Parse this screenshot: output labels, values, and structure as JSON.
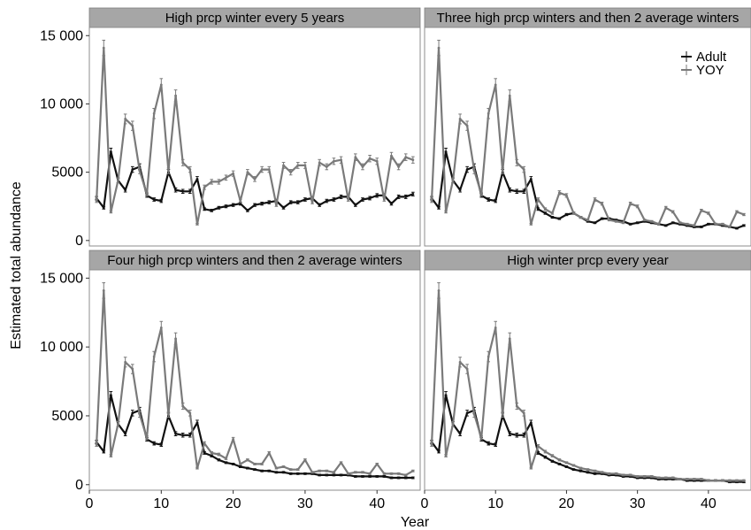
{
  "chart_data": {
    "type": "line",
    "layout": "facet-2x2",
    "xlabel": "Year",
    "ylabel": "Estimated total abundance",
    "xlim": [
      0,
      46
    ],
    "ylim": [
      -400,
      15600
    ],
    "xticks": [
      0,
      10,
      20,
      30,
      40
    ],
    "yticks": [
      0,
      5000,
      10000,
      15000
    ],
    "ytick_labels": [
      "0",
      "5000",
      "10 000",
      "15 000"
    ],
    "legend": {
      "placement": "top-right",
      "entries": [
        "Adult",
        "YOY"
      ],
      "panel": 1
    },
    "series_colors": {
      "Adult": "#111111",
      "YOY": "#7a7a7a"
    },
    "grid": false,
    "error_bars": true,
    "x": [
      1,
      2,
      3,
      4,
      5,
      6,
      7,
      8,
      9,
      10,
      11,
      12,
      13,
      14,
      15,
      16,
      17,
      18,
      19,
      20,
      21,
      22,
      23,
      24,
      25,
      26,
      27,
      28,
      29,
      30,
      31,
      32,
      33,
      34,
      35,
      36,
      37,
      38,
      39,
      40,
      41,
      42,
      43,
      44,
      45
    ],
    "panels": [
      {
        "title": "High prcp winter every 5 years",
        "series": [
          {
            "name": "Adult",
            "values": [
              3100,
              2400,
              6500,
              4400,
              3700,
              5200,
              5400,
              3300,
              3000,
              2900,
              5000,
              3700,
              3600,
              3600,
              4500,
              2300,
              2200,
              2400,
              2500,
              2600,
              2700,
              2200,
              2600,
              2700,
              2800,
              2900,
              2400,
              2800,
              2800,
              3000,
              3100,
              2600,
              2900,
              3000,
              3200,
              3200,
              2600,
              3000,
              3100,
              3300,
              3300,
              2700,
              3200,
              3200,
              3400
            ]
          },
          {
            "name": "YOY",
            "values": [
              2900,
              14100,
              2100,
              4400,
              8900,
              8400,
              5100,
              3400,
              9300,
              11400,
              5100,
              10600,
              5700,
              5200,
              1200,
              3900,
              4300,
              4300,
              4600,
              4900,
              2900,
              5000,
              4500,
              5200,
              5200,
              2600,
              5500,
              5000,
              5500,
              5500,
              2800,
              5700,
              5400,
              5800,
              5900,
              3000,
              6100,
              5400,
              6000,
              5800,
              3000,
              6200,
              5400,
              6100,
              5900
            ]
          }
        ]
      },
      {
        "title": "Three high prcp winters and then 2 average winters",
        "series": [
          {
            "name": "Adult",
            "values": [
              3100,
              2400,
              6500,
              4400,
              3700,
              5200,
              5400,
              3300,
              3000,
              2900,
              5000,
              3700,
              3600,
              3600,
              4500,
              2300,
              2000,
              1700,
              1600,
              1900,
              2000,
              1700,
              1400,
              1300,
              1600,
              1600,
              1500,
              1400,
              1200,
              1300,
              1400,
              1300,
              1200,
              1100,
              1300,
              1200,
              1100,
              1000,
              1000,
              1200,
              1200,
              1100,
              1000,
              900,
              1100
            ]
          },
          {
            "name": "YOY",
            "values": [
              2900,
              14100,
              2100,
              4400,
              8900,
              8400,
              5100,
              3400,
              9300,
              11400,
              5100,
              10600,
              5700,
              5200,
              1200,
              3000,
              2300,
              2000,
              3500,
              3300,
              2000,
              1700,
              1500,
              3000,
              2700,
              1500,
              1400,
              1300,
              2700,
              2500,
              1500,
              1400,
              1200,
              2400,
              2100,
              1300,
              1200,
              1100,
              2200,
              2000,
              1200,
              1200,
              1000,
              2100,
              1900
            ]
          }
        ]
      },
      {
        "title": "Four high prcp winters and then 2 average winters",
        "series": [
          {
            "name": "Adult",
            "values": [
              3100,
              2400,
              6500,
              4400,
              3700,
              5200,
              5400,
              3300,
              3000,
              2900,
              5000,
              3700,
              3600,
              3600,
              4500,
              2300,
              2100,
              1800,
              1600,
              1500,
              1300,
              1200,
              1100,
              1000,
              1000,
              900,
              900,
              800,
              800,
              800,
              800,
              700,
              700,
              700,
              700,
              700,
              600,
              600,
              600,
              600,
              600,
              500,
              500,
              500,
              500
            ]
          },
          {
            "name": "YOY",
            "values": [
              2900,
              14100,
              2100,
              4400,
              8900,
              8400,
              5100,
              3400,
              9300,
              11400,
              5100,
              10600,
              5700,
              5200,
              1200,
              3000,
              2300,
              2200,
              1900,
              3300,
              1500,
              1800,
              1500,
              1500,
              2300,
              1200,
              1300,
              1100,
              1100,
              1800,
              900,
              1000,
              1000,
              900,
              1600,
              800,
              900,
              900,
              800,
              1500,
              800,
              800,
              800,
              700,
              1000
            ]
          }
        ]
      },
      {
        "title": "High winter prcp every year",
        "series": [
          {
            "name": "Adult",
            "values": [
              3100,
              2400,
              6500,
              4400,
              3700,
              5200,
              5400,
              3300,
              3000,
              2900,
              5000,
              3700,
              3600,
              3600,
              4500,
              2300,
              2000,
              1700,
              1500,
              1300,
              1100,
              1000,
              900,
              800,
              800,
              700,
              700,
              600,
              600,
              500,
              500,
              500,
              400,
              400,
              400,
              400,
              300,
              300,
              300,
              300,
              300,
              300,
              200,
              200,
              200
            ]
          },
          {
            "name": "YOY",
            "values": [
              2900,
              14100,
              2100,
              4400,
              8900,
              8400,
              5100,
              3400,
              9300,
              11400,
              5100,
              10600,
              5700,
              5200,
              1200,
              2800,
              2400,
              2100,
              1800,
              1600,
              1400,
              1200,
              1100,
              1000,
              900,
              800,
              800,
              700,
              700,
              600,
              600,
              600,
              500,
              500,
              500,
              400,
              400,
              400,
              400,
              300,
              300,
              300,
              300,
              300,
              300
            ]
          }
        ]
      }
    ]
  }
}
